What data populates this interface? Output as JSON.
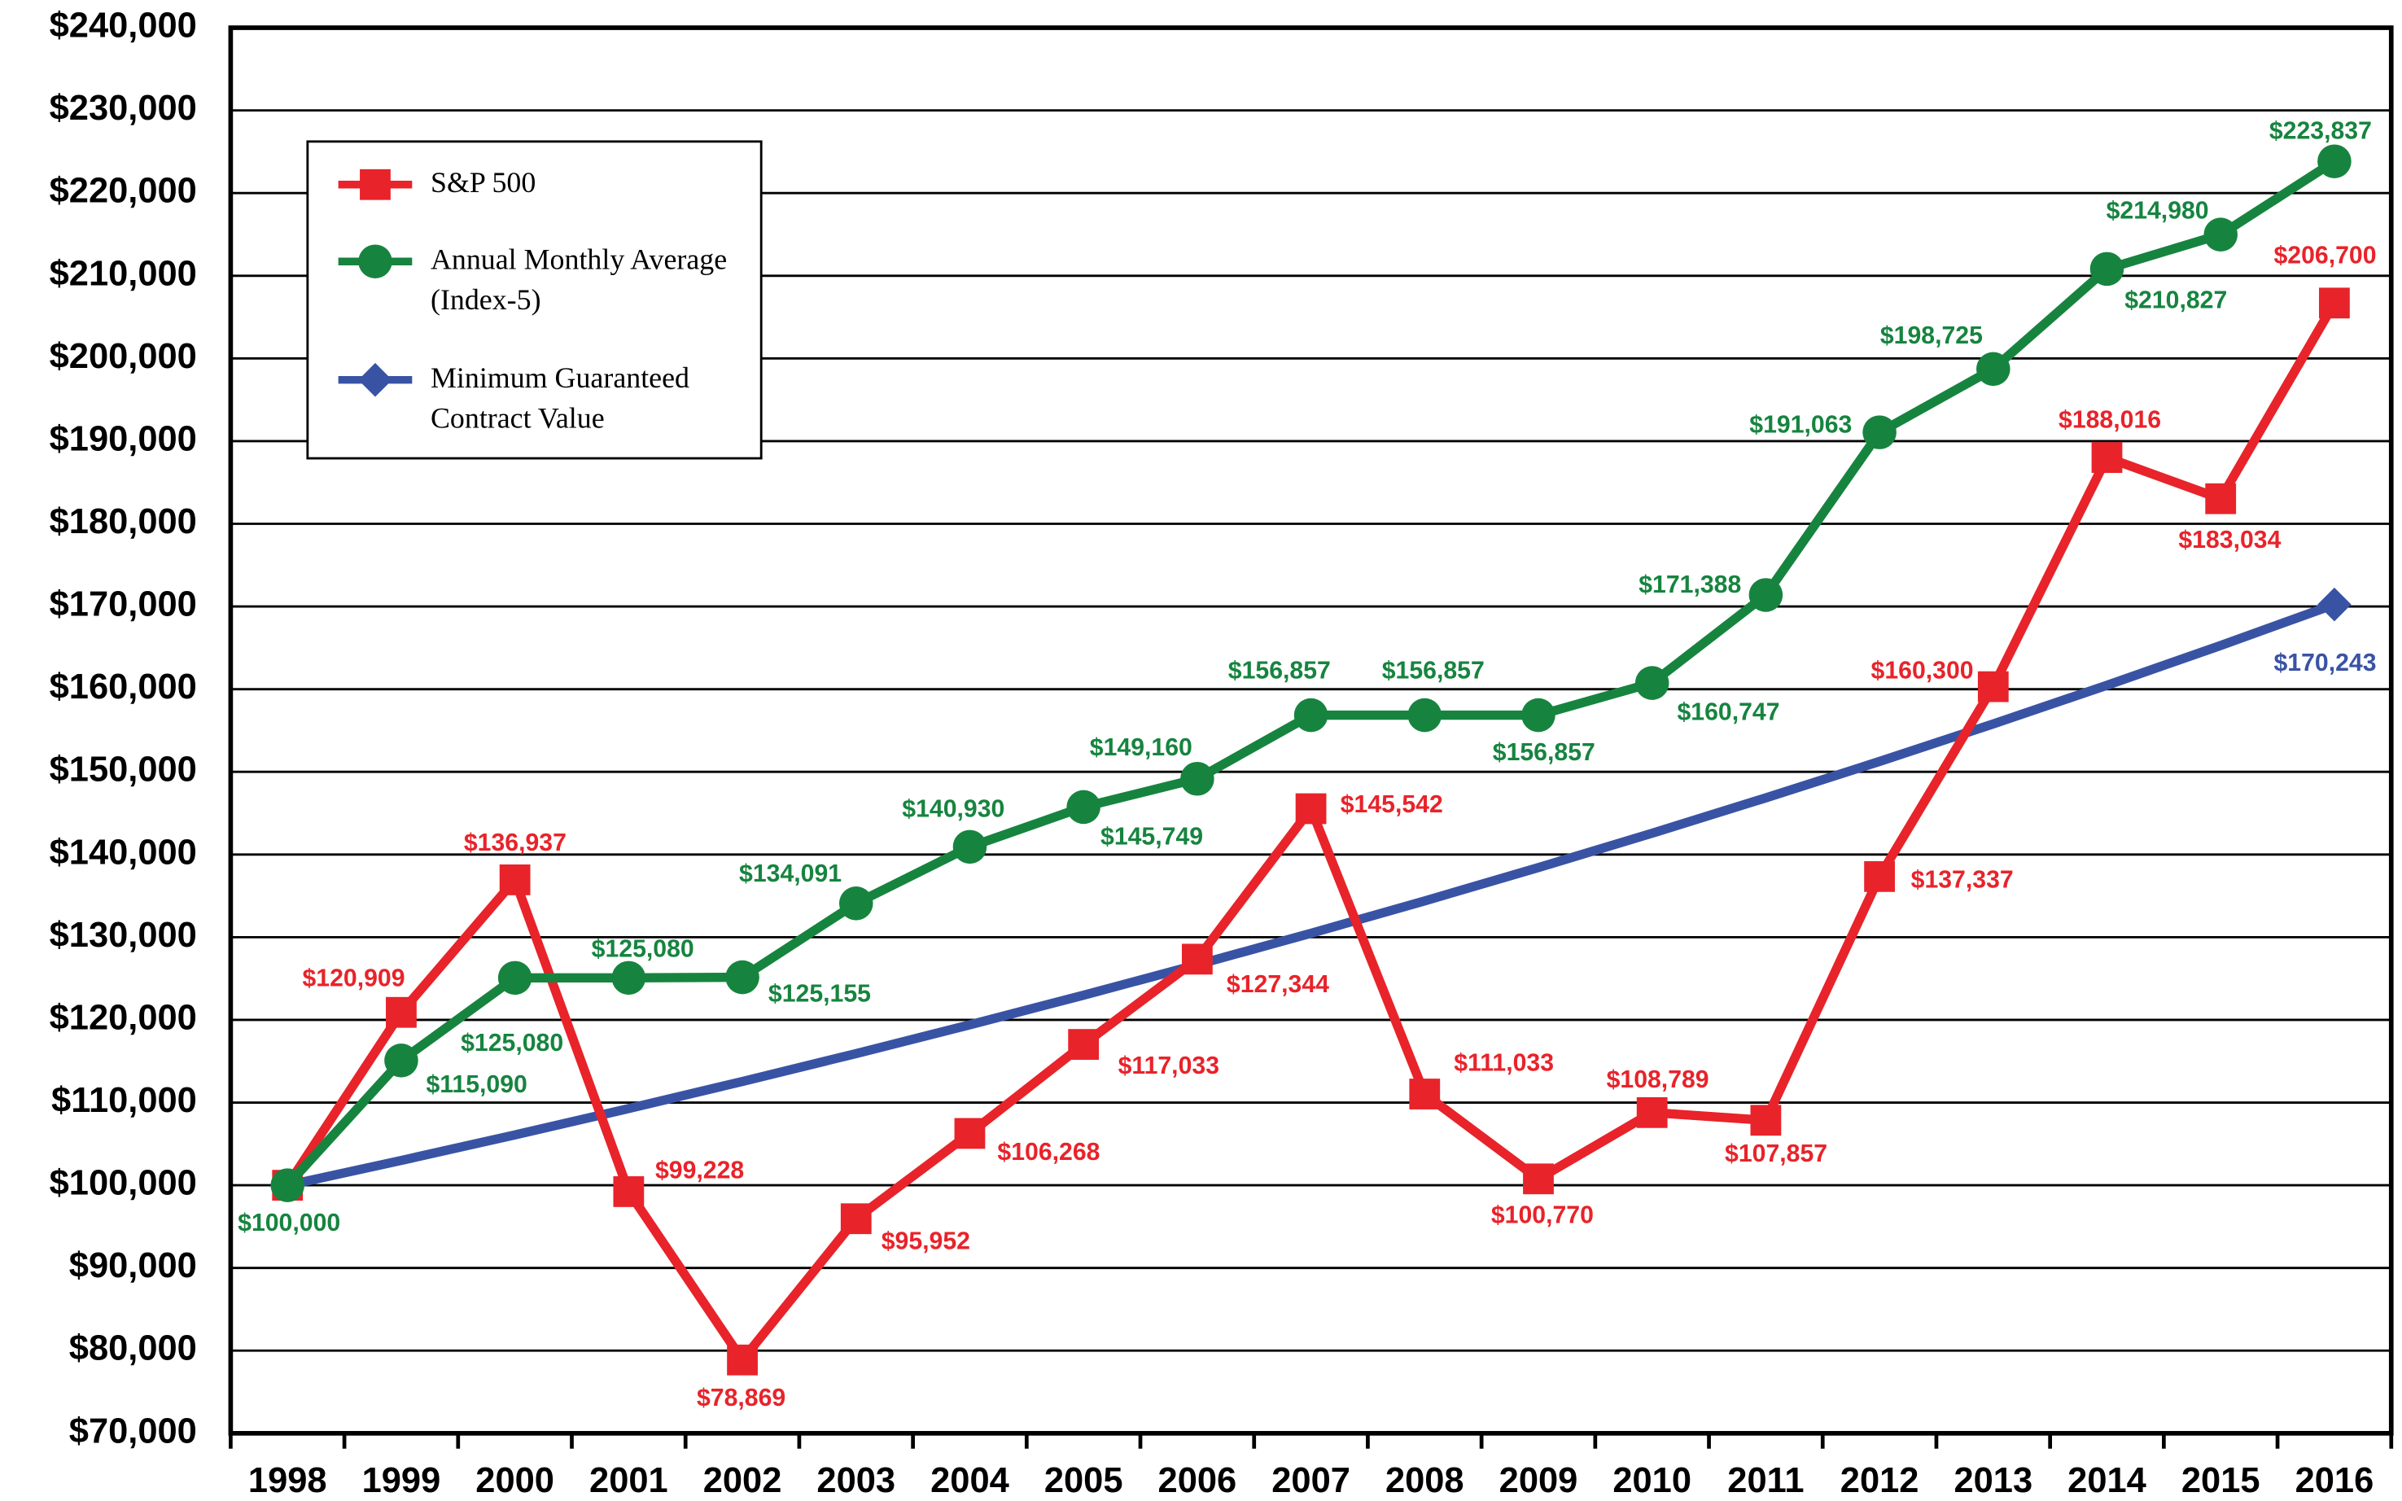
{
  "chart_data": {
    "type": "line",
    "categories": [
      "1998",
      "1999",
      "2000",
      "2001",
      "2002",
      "2003",
      "2004",
      "2005",
      "2006",
      "2007",
      "2008",
      "2009",
      "2010",
      "2011",
      "2012",
      "2013",
      "2014",
      "2015",
      "2016"
    ],
    "series": [
      {
        "name": "S&P 500",
        "color": "#e8232a",
        "marker": "square",
        "values": [
          100000,
          120909,
          136937,
          99228,
          78869,
          95952,
          106268,
          117033,
          127344,
          145542,
          111033,
          100770,
          108789,
          107857,
          137337,
          160300,
          188016,
          183034,
          206700
        ],
        "value_labels": [
          null,
          "$120,909",
          "$136,937",
          "$99,228",
          "$78,869",
          "$95,952",
          "$106,268",
          "$117,033",
          "$127,344",
          "$145,542",
          "$111,033",
          "$100,770",
          "$108,789",
          "$107,857",
          "$137,337",
          "$160,300",
          "$188,016",
          "$183,034",
          "$206,700"
        ]
      },
      {
        "name": "Annual Monthly Average (Index-5)",
        "color": "#16843f",
        "marker": "circle",
        "values": [
          100000,
          115090,
          125080,
          125080,
          125155,
          134091,
          140930,
          145749,
          149160,
          156857,
          156857,
          156857,
          160747,
          171388,
          191063,
          198725,
          210827,
          214980,
          223837
        ],
        "value_labels": [
          "$100,000",
          "$115,090",
          "$125,080",
          "$125,080",
          "$125,155",
          "$134,091",
          "$140,930",
          "$145,749",
          "$149,160",
          "$156,857",
          "$156,857",
          "$156,857",
          "$160,747",
          "$171,388",
          "$191,063",
          "$198,725",
          "$210,827",
          "$214,980",
          "$223,837"
        ]
      },
      {
        "name": "Minimum Guaranteed Contract Value",
        "color": "#3953a4",
        "marker": "diamond",
        "values": [
          100000,
          103000,
          106090,
          109273,
          112551,
          115927,
          119405,
          122987,
          126677,
          130477,
          134392,
          138423,
          142576,
          146853,
          151259,
          155797,
          160471,
          165285,
          170243
        ],
        "value_labels": [
          null,
          null,
          null,
          null,
          null,
          null,
          null,
          null,
          null,
          null,
          null,
          null,
          null,
          null,
          null,
          null,
          null,
          null,
          "$170,243"
        ]
      }
    ],
    "ylim": [
      70000,
      240000
    ],
    "yticks": [
      {
        "value": 70000,
        "label": "$70,000"
      },
      {
        "value": 80000,
        "label": "$80,000"
      },
      {
        "value": 90000,
        "label": "$90,000"
      },
      {
        "value": 100000,
        "label": "$100,000"
      },
      {
        "value": 110000,
        "label": "$110,000"
      },
      {
        "value": 120000,
        "label": "$120,000"
      },
      {
        "value": 130000,
        "label": "$130,000"
      },
      {
        "value": 140000,
        "label": "$140,000"
      },
      {
        "value": 150000,
        "label": "$150,000"
      },
      {
        "value": 160000,
        "label": "$160,000"
      },
      {
        "value": 170000,
        "label": "$170,000"
      },
      {
        "value": 180000,
        "label": "$180,000"
      },
      {
        "value": 190000,
        "label": "$190,000"
      },
      {
        "value": 200000,
        "label": "$200,000"
      },
      {
        "value": 210000,
        "label": "$210,000"
      },
      {
        "value": 220000,
        "label": "$220,000"
      },
      {
        "value": 230000,
        "label": "$230,000"
      },
      {
        "value": 240000,
        "label": "$240,000"
      }
    ],
    "grid": true,
    "legend": "upper left"
  }
}
